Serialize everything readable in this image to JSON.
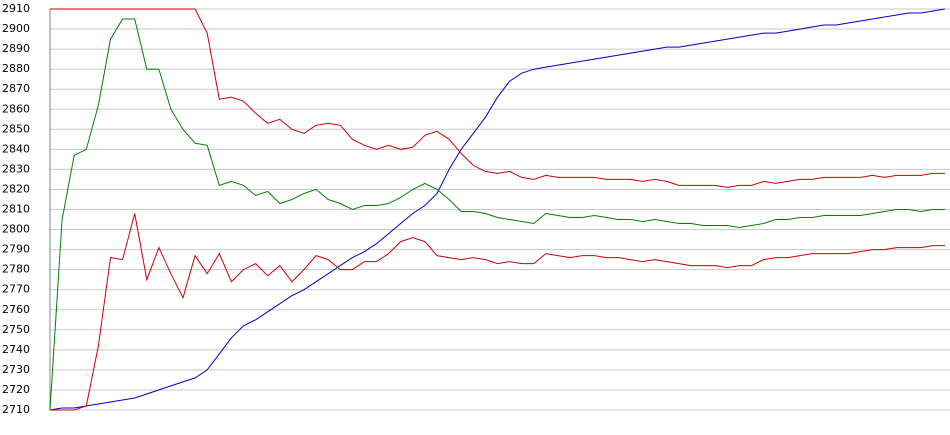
{
  "chart_data": {
    "type": "line",
    "ylim": [
      2710,
      2910
    ],
    "yticks": [
      2710,
      2720,
      2730,
      2740,
      2750,
      2760,
      2770,
      2780,
      2790,
      2800,
      2810,
      2820,
      2830,
      2840,
      2850,
      2860,
      2870,
      2880,
      2890,
      2900,
      2910
    ],
    "grid": true,
    "series": [
      {
        "color": "#0000cc",
        "values": [
          2710,
          2711,
          2711,
          2712,
          2713,
          2714,
          2715,
          2716,
          2718,
          2720,
          2722,
          2724,
          2726,
          2730,
          2738,
          2746,
          2752,
          2755,
          2759,
          2763,
          2767,
          2770,
          2774,
          2778,
          2782,
          2786,
          2789,
          2793,
          2798,
          2803,
          2808,
          2812,
          2818,
          2830,
          2840,
          2848,
          2856,
          2866,
          2874,
          2878,
          2880,
          2881,
          2882,
          2883,
          2884,
          2885,
          2886,
          2887,
          2888,
          2889,
          2890,
          2891,
          2891,
          2892,
          2893,
          2894,
          2895,
          2896,
          2897,
          2898,
          2898,
          2899,
          2900,
          2901,
          2902,
          2902,
          2903,
          2904,
          2905,
          2906,
          2907,
          2908,
          2908,
          2909,
          2910
        ]
      },
      {
        "color": "#008000",
        "values": [
          2710,
          2805,
          2837,
          2840,
          2862,
          2895,
          2905,
          2905,
          2880,
          2880,
          2860,
          2850,
          2843,
          2842,
          2822,
          2824,
          2822,
          2817,
          2819,
          2813,
          2815,
          2818,
          2820,
          2815,
          2813,
          2810,
          2812,
          2812,
          2813,
          2816,
          2820,
          2823,
          2820,
          2815,
          2809,
          2809,
          2808,
          2806,
          2805,
          2804,
          2803,
          2808,
          2807,
          2806,
          2806,
          2807,
          2806,
          2805,
          2805,
          2804,
          2805,
          2804,
          2803,
          2803,
          2802,
          2802,
          2802,
          2801,
          2802,
          2803,
          2805,
          2805,
          2806,
          2806,
          2807,
          2807,
          2807,
          2807,
          2808,
          2809,
          2810,
          2810,
          2809,
          2810,
          2810
        ]
      },
      {
        "color": "#cc0000",
        "values": [
          2910,
          2910,
          2910,
          2910,
          2910,
          2910,
          2910,
          2910,
          2910,
          2910,
          2910,
          2910,
          2910,
          2898,
          2865,
          2866,
          2864,
          2858,
          2853,
          2855,
          2850,
          2848,
          2852,
          2853,
          2852,
          2845,
          2842,
          2840,
          2842,
          2840,
          2841,
          2847,
          2849,
          2845,
          2838,
          2832,
          2829,
          2828,
          2829,
          2826,
          2825,
          2827,
          2826,
          2826,
          2826,
          2826,
          2825,
          2825,
          2825,
          2824,
          2825,
          2824,
          2822,
          2822,
          2822,
          2822,
          2821,
          2822,
          2822,
          2824,
          2823,
          2824,
          2825,
          2825,
          2826,
          2826,
          2826,
          2826,
          2827,
          2826,
          2827,
          2827,
          2827,
          2828,
          2828
        ]
      },
      {
        "color": "#cc0000",
        "values": [
          2710,
          2710,
          2710,
          2712,
          2742,
          2786,
          2785,
          2808,
          2775,
          2791,
          2778,
          2766,
          2787,
          2778,
          2788,
          2774,
          2780,
          2783,
          2777,
          2782,
          2774,
          2780,
          2787,
          2785,
          2780,
          2780,
          2784,
          2784,
          2788,
          2794,
          2796,
          2794,
          2787,
          2786,
          2785,
          2786,
          2785,
          2783,
          2784,
          2783,
          2783,
          2788,
          2787,
          2786,
          2787,
          2787,
          2786,
          2786,
          2785,
          2784,
          2785,
          2784,
          2783,
          2782,
          2782,
          2782,
          2781,
          2782,
          2782,
          2785,
          2786,
          2786,
          2787,
          2788,
          2788,
          2788,
          2788,
          2789,
          2790,
          2790,
          2791,
          2791,
          2791,
          2792,
          2792
        ]
      }
    ]
  }
}
